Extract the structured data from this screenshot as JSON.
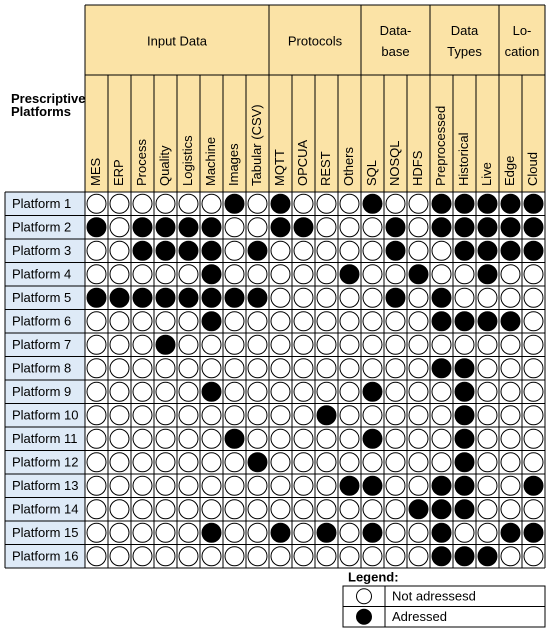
{
  "corner": "Prescriptive Platforms",
  "groups": [
    {
      "lines": [
        "Input Data"
      ],
      "columns": [
        "MES",
        "ERP",
        "Process",
        "Quality",
        "Logistics",
        "Machine",
        "Images",
        "Tabular (CSV)"
      ]
    },
    {
      "lines": [
        "Protocols"
      ],
      "columns": [
        "MQTT",
        "OPCUA",
        "REST",
        "Others"
      ]
    },
    {
      "lines": [
        "Data-",
        "base"
      ],
      "columns": [
        "SQL",
        "NOSQL",
        "HDFS"
      ]
    },
    {
      "lines": [
        "Data",
        "Types"
      ],
      "columns": [
        "Preprocessed",
        "Historical",
        "Live"
      ]
    },
    {
      "lines": [
        "Lo-",
        "cation"
      ],
      "columns": [
        "Edge",
        "Cloud"
      ]
    }
  ],
  "rows": [
    {
      "name": "Platform 1",
      "cells": [
        0,
        0,
        0,
        0,
        0,
        0,
        1,
        0,
        1,
        0,
        0,
        0,
        1,
        0,
        0,
        1,
        1,
        1,
        1,
        1
      ]
    },
    {
      "name": "Platform 2",
      "cells": [
        1,
        0,
        1,
        1,
        1,
        1,
        0,
        0,
        1,
        1,
        0,
        0,
        0,
        1,
        0,
        1,
        1,
        1,
        1,
        1
      ]
    },
    {
      "name": "Platform 3",
      "cells": [
        0,
        0,
        1,
        1,
        1,
        1,
        0,
        1,
        0,
        0,
        0,
        0,
        0,
        1,
        0,
        0,
        1,
        1,
        1,
        1
      ]
    },
    {
      "name": "Platform 4",
      "cells": [
        0,
        0,
        0,
        0,
        0,
        1,
        0,
        0,
        0,
        0,
        0,
        1,
        0,
        0,
        1,
        0,
        0,
        1,
        0,
        0
      ]
    },
    {
      "name": "Platform 5",
      "cells": [
        1,
        1,
        1,
        1,
        1,
        1,
        1,
        1,
        0,
        0,
        0,
        0,
        0,
        1,
        0,
        1,
        0,
        0,
        0,
        0
      ]
    },
    {
      "name": "Platform 6",
      "cells": [
        0,
        0,
        0,
        0,
        0,
        1,
        0,
        0,
        0,
        0,
        0,
        0,
        0,
        0,
        0,
        1,
        1,
        1,
        1,
        0
      ]
    },
    {
      "name": "Platform 7",
      "cells": [
        0,
        0,
        0,
        1,
        0,
        0,
        0,
        0,
        0,
        0,
        0,
        0,
        0,
        0,
        0,
        0,
        0,
        0,
        0,
        0
      ]
    },
    {
      "name": "Platform 8",
      "cells": [
        0,
        0,
        0,
        0,
        0,
        0,
        0,
        0,
        0,
        0,
        0,
        0,
        0,
        0,
        0,
        1,
        1,
        0,
        0,
        0
      ]
    },
    {
      "name": "Platform 9",
      "cells": [
        0,
        0,
        0,
        0,
        0,
        1,
        0,
        0,
        0,
        0,
        0,
        0,
        1,
        0,
        0,
        0,
        1,
        0,
        0,
        0
      ]
    },
    {
      "name": "Platform 10",
      "cells": [
        0,
        0,
        0,
        0,
        0,
        0,
        0,
        0,
        0,
        0,
        1,
        0,
        0,
        0,
        0,
        0,
        1,
        0,
        0,
        0
      ]
    },
    {
      "name": "Platform 11",
      "cells": [
        0,
        0,
        0,
        0,
        0,
        0,
        1,
        0,
        0,
        0,
        0,
        0,
        1,
        0,
        0,
        0,
        1,
        0,
        0,
        0
      ]
    },
    {
      "name": "Platform 12",
      "cells": [
        0,
        0,
        0,
        0,
        0,
        0,
        0,
        1,
        0,
        0,
        0,
        0,
        0,
        0,
        0,
        0,
        1,
        0,
        0,
        0
      ]
    },
    {
      "name": "Platform 13",
      "cells": [
        0,
        0,
        0,
        0,
        0,
        0,
        0,
        0,
        0,
        0,
        0,
        1,
        1,
        0,
        0,
        1,
        1,
        0,
        0,
        1
      ]
    },
    {
      "name": "Platform 14",
      "cells": [
        0,
        0,
        0,
        0,
        0,
        0,
        0,
        0,
        0,
        0,
        0,
        0,
        0,
        0,
        1,
        1,
        1,
        0,
        0,
        0
      ]
    },
    {
      "name": "Platform 15",
      "cells": [
        0,
        0,
        0,
        0,
        0,
        1,
        0,
        0,
        1,
        0,
        1,
        0,
        1,
        0,
        0,
        1,
        0,
        0,
        1,
        1
      ]
    },
    {
      "name": "Platform 16",
      "cells": [
        0,
        0,
        0,
        0,
        0,
        0,
        0,
        0,
        0,
        0,
        0,
        0,
        0,
        0,
        0,
        1,
        1,
        1,
        0,
        0
      ]
    }
  ],
  "legend": {
    "title": "Legend:",
    "items": [
      {
        "filled": 0,
        "label": "Not adressesd"
      },
      {
        "filled": 1,
        "label": "Adressed"
      }
    ]
  }
}
